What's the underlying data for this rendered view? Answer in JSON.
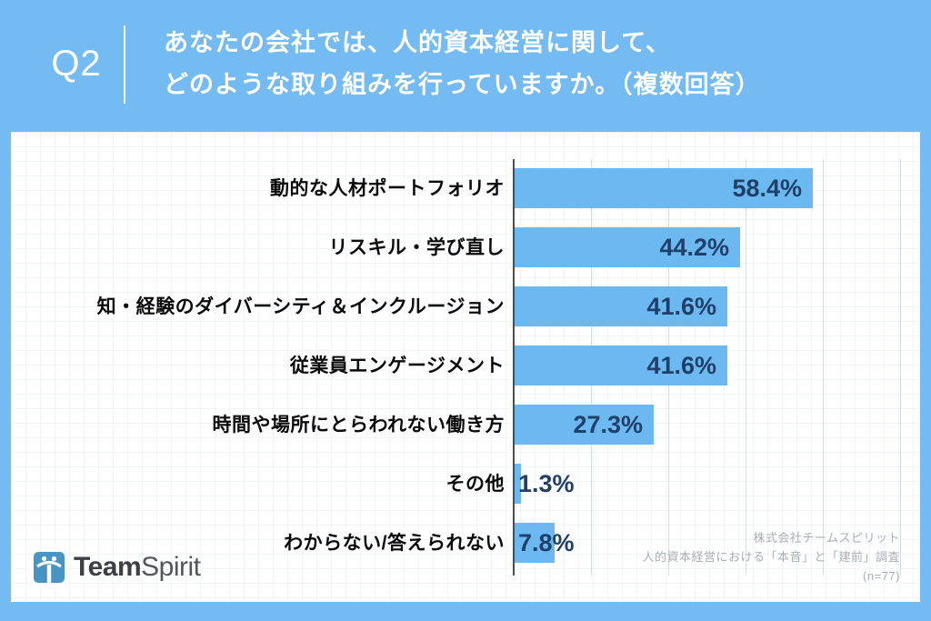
{
  "header": {
    "q_label": "Q2",
    "line1": "あなたの会社では、人的資本経営に関して、",
    "line2": "どのような取り組みを行っていますか。（複数回答）"
  },
  "chart_data": {
    "type": "bar",
    "orientation": "horizontal",
    "title": "",
    "xlabel": "",
    "ylabel": "",
    "xlim": [
      0,
      80
    ],
    "grid": "vertical gridlines every ~15%",
    "legend": "none",
    "categories": [
      "動的な人材ポートフォリオ",
      "リスキル・学び直し",
      "知・経験のダイバーシティ＆インクルージョン",
      "従業員エンゲージメント",
      "時間や場所にとらわれない働き方",
      "その他",
      "わからない/答えられない"
    ],
    "values": [
      58.4,
      44.2,
      41.6,
      41.6,
      27.3,
      1.3,
      7.8
    ],
    "value_labels": [
      "58.4%",
      "44.2%",
      "41.6%",
      "41.6%",
      "27.3%",
      "1.3%",
      "7.8%"
    ],
    "bar_color": "#6CB9F2",
    "value_text_color": "#20406A"
  },
  "footer": {
    "logo_team": "Team",
    "logo_spirit": "Spirit",
    "source_line1": "株式会社チームスピリット",
    "source_line2": "人的資本経営における「本音」と「建前」調査",
    "source_line3": "(n=77)"
  },
  "colors": {
    "background_blue": "#74BBF3",
    "bar_blue": "#6CB9F2",
    "value_navy": "#20406A",
    "logo_blue": "#4A94C4"
  }
}
